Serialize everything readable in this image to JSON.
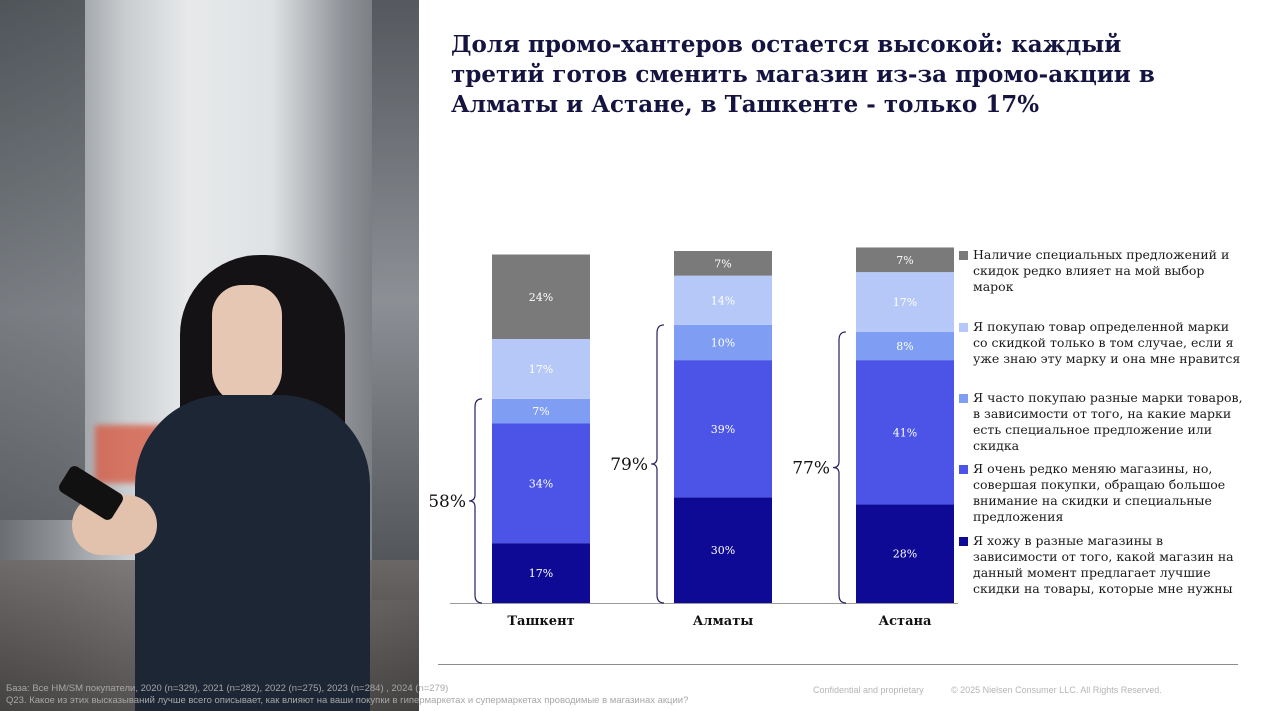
{
  "title": "Доля промо-хантеров остается высокой: каждый третий готов сменить магазин из-за промо-акции в Алматы и Астане, в Ташкенте - только 17%",
  "chart_data": {
    "type": "bar",
    "stacked": true,
    "categories": [
      "Ташкент",
      "Алматы",
      "Астана"
    ],
    "series": [
      {
        "name": "Я хожу в разные магазины в зависимости от того, какой магазин на данный момент предлагает лучшие скидки на товары, которые мне нужны",
        "color": "#0f0a96",
        "values": [
          17,
          30,
          28
        ]
      },
      {
        "name": "Я очень редко меняю магазины, но, совершая покупки, обращаю большое внимание на скидки и специальные предложения",
        "color": "#4b54e6",
        "values": [
          34,
          39,
          41
        ]
      },
      {
        "name": "Я часто покупаю разные марки товаров, в зависимости от того, на какие марки есть специальное предложение или скидка",
        "color": "#7f9ef3",
        "values": [
          7,
          10,
          8
        ]
      },
      {
        "name": "Я покупаю товар определенной марки со скидкой только в том случае, если я уже знаю эту марку и она мне нравится",
        "color": "#b6c8f8",
        "values": [
          17,
          14,
          17
        ]
      },
      {
        "name": "Наличие специальных предложений и скидок редко влияет на мой выбор марок",
        "color": "#7a7a7a",
        "values": [
          24,
          7,
          7
        ]
      }
    ],
    "value_labels": [
      [
        "17%",
        "34%",
        "7%",
        "17%",
        "24%"
      ],
      [
        "30%",
        "39%",
        "10%",
        "14%",
        "7%"
      ],
      [
        "28%",
        "41%",
        "8%",
        "17%",
        "7%"
      ]
    ],
    "brace_totals": [
      "58%",
      "79%",
      "77%"
    ],
    "legend_placement": "right",
    "grid": false,
    "ylim": [
      0,
      100
    ]
  },
  "footer": {
    "base": "База: Все HM/SM покупатели, 2020 (n=329), 2021 (n=282), 2022 (n=275), 2023 (n=284) , 2024 (n=279)",
    "question": "Q23. Какое из этих высказываний лучше всего описывает, как влияют на ваши покупки в гипермаркетах и супермаркетах проводимые в магазинах акции?",
    "confidential": "Confidential and proprietary",
    "copyright": "© 2025 Nielsen Consumer LLC. All Rights Reserved."
  }
}
